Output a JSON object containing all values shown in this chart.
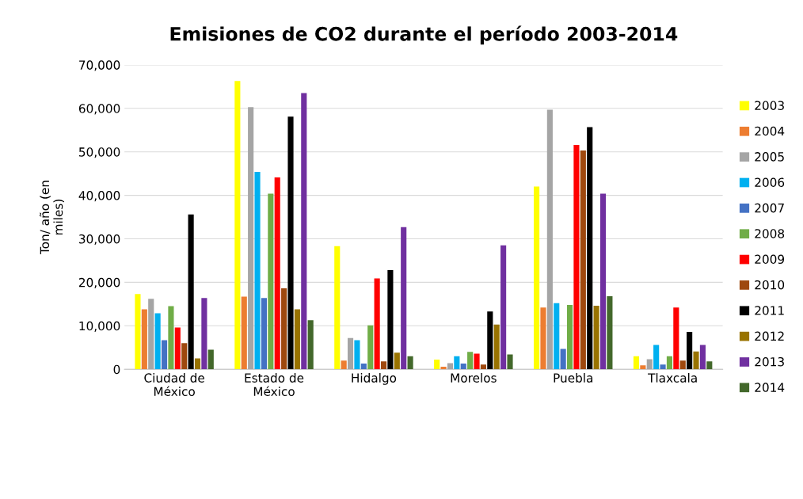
{
  "chart_data": {
    "type": "bar",
    "title": "Emisiones de CO2 durante el período 2003-2014",
    "ylabel": "Ton/ año (en\nmiles)",
    "categories": [
      "Ciudad de\nMéxico",
      "Estado de\nMéxico",
      "Hidalgo",
      "Morelos",
      "Puebla",
      "Tlaxcala"
    ],
    "series": [
      {
        "name": "2003",
        "color": "#ffff00",
        "values": [
          17300,
          66300,
          28300,
          2200,
          42000,
          3000
        ]
      },
      {
        "name": "2004",
        "color": "#ed7d31",
        "values": [
          13800,
          16700,
          2000,
          600,
          14200,
          900
        ]
      },
      {
        "name": "2005",
        "color": "#a5a5a5",
        "values": [
          16200,
          60300,
          7200,
          1400,
          59700,
          2300
        ]
      },
      {
        "name": "2006",
        "color": "#00b0f0",
        "values": [
          12900,
          45400,
          6700,
          3000,
          15200,
          5600
        ]
      },
      {
        "name": "2007",
        "color": "#4472c4",
        "values": [
          6700,
          16400,
          1300,
          1300,
          4700,
          1100
        ]
      },
      {
        "name": "2008",
        "color": "#70ad47",
        "values": [
          14500,
          40400,
          10100,
          4000,
          14800,
          3000
        ]
      },
      {
        "name": "2009",
        "color": "#ff0000",
        "values": [
          9600,
          44100,
          20900,
          3600,
          51600,
          14200
        ]
      },
      {
        "name": "2010",
        "color": "#9e480e",
        "values": [
          6000,
          18600,
          1800,
          1100,
          50300,
          2000
        ]
      },
      {
        "name": "2011",
        "color": "#000000",
        "values": [
          35600,
          58100,
          22800,
          13300,
          55700,
          8600
        ]
      },
      {
        "name": "2012",
        "color": "#997300",
        "values": [
          2500,
          13800,
          3800,
          10300,
          14600,
          4100
        ]
      },
      {
        "name": "2013",
        "color": "#7030a0",
        "values": [
          16400,
          63500,
          32700,
          28500,
          40400,
          5600
        ]
      },
      {
        "name": "2014",
        "color": "#43682b",
        "values": [
          4500,
          11300,
          3000,
          3400,
          16800,
          1800
        ]
      }
    ],
    "ylim": [
      0,
      70000
    ],
    "yticks": [
      0,
      {
        "value": 10000,
        "label": "10,000"
      },
      {
        "value": 20000,
        "label": "20,000"
      },
      {
        "value": 30000,
        "label": "30,000"
      },
      {
        "value": 40000,
        "label": "40,000"
      },
      {
        "value": 50000,
        "label": "50,000"
      },
      {
        "value": 60000,
        "label": "60,000"
      },
      {
        "value": 70000,
        "label": "70,000"
      }
    ],
    "grid": "y",
    "legend": "right"
  }
}
